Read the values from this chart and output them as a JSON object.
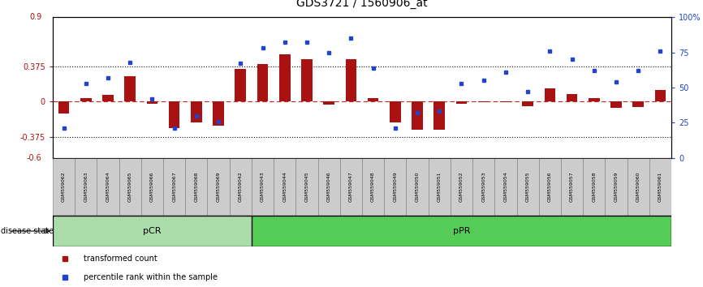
{
  "title": "GDS3721 / 1560906_at",
  "samples": [
    "GSM559062",
    "GSM559063",
    "GSM559064",
    "GSM559065",
    "GSM559066",
    "GSM559067",
    "GSM559068",
    "GSM559069",
    "GSM559042",
    "GSM559043",
    "GSM559044",
    "GSM559045",
    "GSM559046",
    "GSM559047",
    "GSM559048",
    "GSM559049",
    "GSM559050",
    "GSM559051",
    "GSM559052",
    "GSM559053",
    "GSM559054",
    "GSM559055",
    "GSM559056",
    "GSM559057",
    "GSM559058",
    "GSM559059",
    "GSM559060",
    "GSM559061"
  ],
  "transformed_count": [
    -0.13,
    0.04,
    0.07,
    0.27,
    -0.02,
    -0.28,
    -0.22,
    -0.26,
    0.35,
    0.4,
    0.5,
    0.45,
    -0.03,
    0.45,
    0.04,
    -0.22,
    -0.3,
    -0.3,
    -0.02,
    -0.01,
    -0.01,
    -0.05,
    0.14,
    0.08,
    0.04,
    -0.07,
    -0.06,
    0.12
  ],
  "percentile_rank": [
    21,
    53,
    57,
    68,
    42,
    21,
    30,
    26,
    67,
    78,
    82,
    82,
    75,
    85,
    64,
    21,
    32,
    33,
    53,
    55,
    61,
    47,
    76,
    70,
    62,
    54,
    62,
    76
  ],
  "pCR_count": 9,
  "pPR_count": 19,
  "ylim_left": [
    -0.6,
    0.9
  ],
  "hline_values": [
    0.375,
    -0.375
  ],
  "bar_color": "#aa1111",
  "dot_color": "#2244cc",
  "zero_line_color": "#cc2222",
  "hline_color": "#111111",
  "pCR_color": "#aaddaa",
  "pPR_color": "#55cc55",
  "tick_fontsize": 7,
  "title_fontsize": 10
}
